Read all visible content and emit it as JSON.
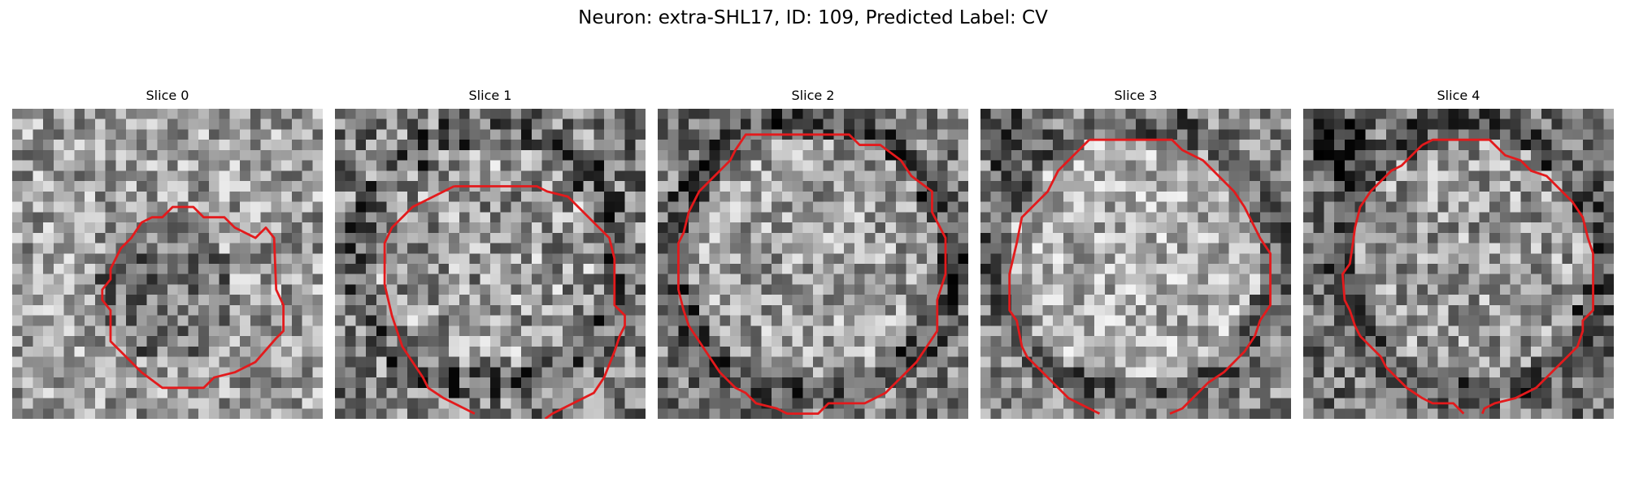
{
  "figure": {
    "title": "Neuron: extra-SHL17, ID: 109, Predicted Label: CV",
    "contour_color": "#e31a1c",
    "colormap": "gray"
  },
  "panels": [
    {
      "title": "Slice 0"
    },
    {
      "title": "Slice 1"
    },
    {
      "title": "Slice 2"
    },
    {
      "title": "Slice 3"
    },
    {
      "title": "Slice 4"
    }
  ]
}
